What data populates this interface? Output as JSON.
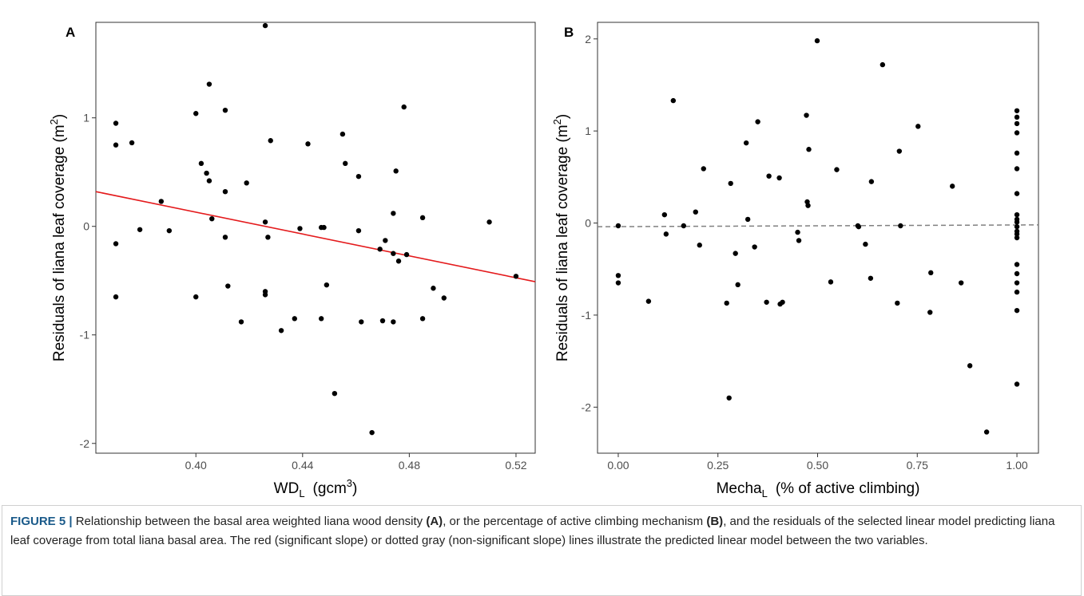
{
  "chart_data": [
    {
      "type": "scatter",
      "panel_label": "A",
      "xlabel": {
        "main": "WD",
        "sub": "L",
        "rest": "(gcm",
        "sup": "3",
        "end": ")"
      },
      "ylabel": {
        "main": "Residuals  of  liana  leaf  coverage  (m",
        "sup": "2",
        "end": ")"
      },
      "color": "#000000",
      "xlim": [
        0.3625,
        0.5272
      ],
      "ylim": [
        -2.09,
        1.88
      ],
      "xticks": [
        {
          "value": 0.4,
          "label": "0.40"
        },
        {
          "value": 0.44,
          "label": "0.44"
        },
        {
          "value": 0.48,
          "label": "0.48"
        },
        {
          "value": 0.52,
          "label": "0.52"
        }
      ],
      "yticks": [
        -2,
        -1,
        0,
        1
      ],
      "x": [
        0.37,
        0.37,
        0.37,
        0.37,
        0.376,
        0.379,
        0.387,
        0.39,
        0.4,
        0.4,
        0.402,
        0.404,
        0.405,
        0.405,
        0.406,
        0.411,
        0.411,
        0.411,
        0.412,
        0.417,
        0.419,
        0.426,
        0.426,
        0.426,
        0.426,
        0.427,
        0.428,
        0.432,
        0.437,
        0.439,
        0.442,
        0.447,
        0.447,
        0.448,
        0.449,
        0.452,
        0.455,
        0.456,
        0.461,
        0.461,
        0.462,
        0.466,
        0.469,
        0.47,
        0.471,
        0.474,
        0.474,
        0.474,
        0.475,
        0.476,
        0.478,
        0.479,
        0.485,
        0.485,
        0.489,
        0.493,
        0.51,
        0.52
      ],
      "values": [
        0.95,
        0.75,
        -0.16,
        -0.65,
        0.77,
        -0.03,
        0.23,
        -0.04,
        1.04,
        -0.65,
        0.58,
        0.49,
        0.42,
        1.31,
        0.07,
        0.32,
        1.07,
        -0.1,
        -0.55,
        -0.88,
        0.4,
        1.85,
        0.04,
        -0.6,
        -0.63,
        -0.1,
        0.79,
        -0.96,
        -0.85,
        -0.02,
        0.76,
        -0.01,
        -0.85,
        -0.01,
        -0.54,
        -1.54,
        0.85,
        0.58,
        -0.04,
        0.46,
        -0.88,
        -1.9,
        -0.21,
        -0.87,
        -0.13,
        -0.88,
        -0.25,
        0.12,
        0.51,
        -0.32,
        1.1,
        -0.26,
        -0.85,
        0.08,
        -0.57,
        -0.66,
        0.04,
        -0.46
      ],
      "trend_line": {
        "color": "#e41a1c",
        "dashed": false,
        "x": [
          0.3625,
          0.5272
        ],
        "values": [
          0.32,
          -0.51
        ]
      }
    },
    {
      "type": "scatter",
      "panel_label": "B",
      "xlabel": {
        "main": "Mecha",
        "sub": "L",
        "rest": "(% of active climbing)"
      },
      "ylabel": {
        "main": "Residuals  of  liana  leaf  coverage  (m",
        "sup": "2",
        "end": ")"
      },
      "color": "#000000",
      "xlim": [
        -0.052,
        1.054
      ],
      "ylim": [
        -2.5,
        2.18
      ],
      "xticks": [
        {
          "value": 0,
          "label": "0.00"
        },
        {
          "value": 0.25,
          "label": "0.25"
        },
        {
          "value": 0.5,
          "label": "0.50"
        },
        {
          "value": 0.75,
          "label": "0.75"
        },
        {
          "value": 1,
          "label": "1.00"
        }
      ],
      "yticks": [
        -2,
        -1,
        0,
        1,
        2
      ],
      "x": [
        0,
        0,
        0,
        0.076,
        0.116,
        0.12,
        0.138,
        0.164,
        0.194,
        0.204,
        0.214,
        0.272,
        0.278,
        0.282,
        0.294,
        0.3,
        0.321,
        0.325,
        0.342,
        0.35,
        0.372,
        0.378,
        0.404,
        0.406,
        0.412,
        0.45,
        0.453,
        0.472,
        0.474,
        0.478,
        0.476,
        0.533,
        0.548,
        0.499,
        0.601,
        0.603,
        0.62,
        0.635,
        0.633,
        0.663,
        0.752,
        0.7,
        0.705,
        0.708,
        0.784,
        0.782,
        0.838,
        0.86,
        0.882,
        0.924,
        1,
        1,
        1,
        1,
        1,
        1,
        1,
        1,
        1,
        1,
        1,
        1,
        1,
        1,
        1,
        1,
        1,
        1,
        1,
        1
      ],
      "values": [
        -0.03,
        -0.57,
        -0.65,
        -0.85,
        0.09,
        -0.12,
        1.33,
        -0.03,
        0.12,
        -0.24,
        0.59,
        -0.87,
        -1.9,
        0.43,
        -0.33,
        -0.67,
        0.87,
        0.04,
        -0.26,
        1.1,
        -0.86,
        0.51,
        0.49,
        -0.88,
        -0.86,
        -0.1,
        -0.19,
        1.17,
        0.23,
        0.8,
        0.19,
        -0.64,
        0.58,
        1.98,
        -0.03,
        -0.04,
        -0.23,
        0.45,
        -0.6,
        1.72,
        1.05,
        -0.87,
        0.78,
        -0.03,
        -0.54,
        -0.97,
        0.4,
        -0.65,
        -1.55,
        -2.27,
        1.22,
        1.15,
        1.08,
        0.98,
        0.76,
        0.59,
        0.32,
        0.09,
        0.04,
        0.01,
        -0.04,
        -0.09,
        -0.12,
        -0.16,
        -0.45,
        -0.55,
        -0.65,
        -0.75,
        -0.95,
        -1.75
      ],
      "trend_line": {
        "color": "#808080",
        "dashed": true,
        "x": [
          -0.052,
          1.054
        ],
        "values": [
          -0.04,
          -0.02
        ]
      }
    }
  ],
  "caption": {
    "label": "FIGURE 5 |",
    "segments": [
      "Relationship between the basal area weighted liana wood density",
      "(A)",
      ", or the percentage of active climbing mechanism",
      "(B)",
      ", and the residuals of the selected linear model predicting liana leaf coverage from total liana basal area. The red (significant slope) or dotted gray (non-significant slope) lines illustrate the predicted linear model between the two variables."
    ]
  }
}
